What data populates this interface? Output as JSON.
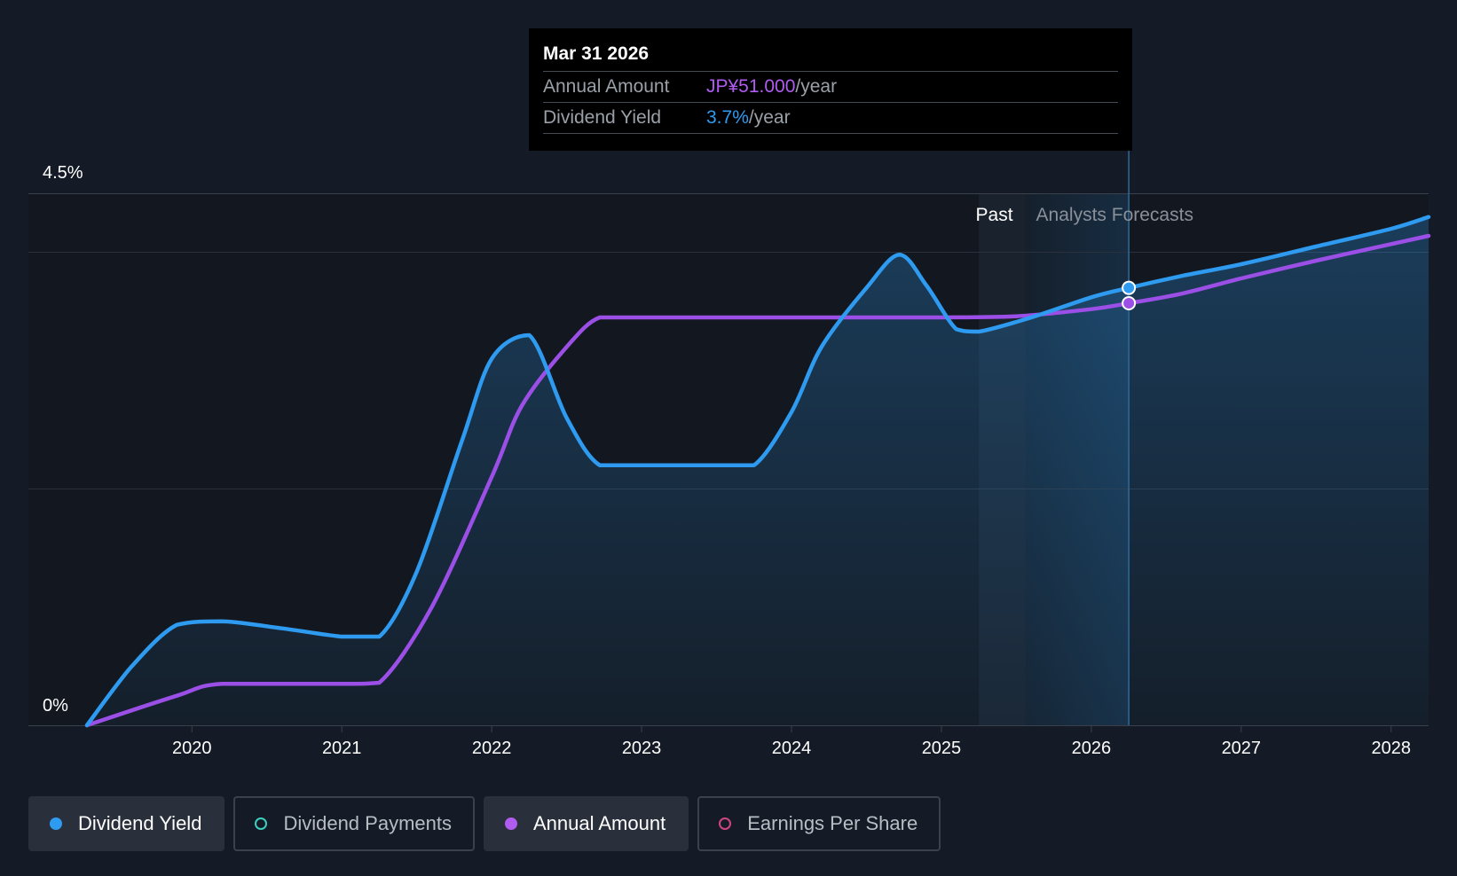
{
  "tooltip": {
    "date": "Mar 31 2026",
    "rows": [
      {
        "label": "Annual Amount",
        "value": "JP¥51.000",
        "unit": "/year"
      },
      {
        "label": "Dividend Yield",
        "value": "3.7%",
        "unit": "/year"
      }
    ]
  },
  "legend": [
    {
      "label": "Dividend Yield",
      "color": "#2e9bf0",
      "active": true,
      "filled": true
    },
    {
      "label": "Dividend Payments",
      "color": "#3ccfc0",
      "active": false,
      "filled": false
    },
    {
      "label": "Annual Amount",
      "color": "#b05cf0",
      "active": true,
      "filled": true
    },
    {
      "label": "Earnings Per Share",
      "color": "#d0457f",
      "active": false,
      "filled": false
    }
  ],
  "colors": {
    "yield": "#2e9bf0",
    "amount": "#9b4fe6",
    "background": "#151b26"
  },
  "chart_data": {
    "type": "line",
    "title": "",
    "xlabel": "",
    "ylabel": "",
    "ylim": [
      0,
      4.5
    ],
    "xlim": [
      2019.3,
      2028.25
    ],
    "y_tick_labels": [
      "0%",
      "4.5%"
    ],
    "x_ticks": [
      2020,
      2021,
      2022,
      2023,
      2024,
      2025,
      2026,
      2027,
      2028
    ],
    "regions": {
      "past_label": "Past",
      "forecast_label": "Analysts Forecasts",
      "past_end": 2025.25,
      "forecast_start": 2025.56,
      "cursor": 2026.25
    },
    "series": [
      {
        "name": "Dividend Yield",
        "unit": "%",
        "x": [
          2019.3,
          2019.6,
          2019.9,
          2020.2,
          2020.6,
          2021.0,
          2021.25,
          2021.5,
          2021.8,
          2022.0,
          2022.25,
          2022.5,
          2022.72,
          2023.0,
          2023.5,
          2023.75,
          2024.0,
          2024.2,
          2024.5,
          2024.72,
          2024.9,
          2025.1,
          2025.25,
          2025.6,
          2026.0,
          2026.25,
          2026.6,
          2027.0,
          2027.5,
          2028.0,
          2028.25
        ],
        "values": [
          0.0,
          0.5,
          0.85,
          0.88,
          0.82,
          0.75,
          0.75,
          1.3,
          2.4,
          3.1,
          3.3,
          2.6,
          2.2,
          2.2,
          2.2,
          2.2,
          2.65,
          3.2,
          3.7,
          3.98,
          3.72,
          3.35,
          3.33,
          3.45,
          3.62,
          3.7,
          3.8,
          3.9,
          4.05,
          4.2,
          4.3
        ]
      },
      {
        "name": "Annual Amount",
        "unit": "JP¥",
        "scale_note": "plotted on yield axis (JP¥51.000 ≈ 3.57%)",
        "x": [
          2019.3,
          2019.9,
          2020.2,
          2021.0,
          2021.25,
          2021.6,
          2022.0,
          2022.2,
          2022.5,
          2022.72,
          2023.0,
          2024.0,
          2025.0,
          2025.5,
          2026.0,
          2026.25,
          2026.6,
          2027.0,
          2027.5,
          2028.0,
          2028.25
        ],
        "values": [
          0.0,
          0.25,
          0.35,
          0.35,
          0.36,
          1.0,
          2.1,
          2.7,
          3.2,
          3.45,
          3.45,
          3.45,
          3.45,
          3.46,
          3.52,
          3.57,
          3.65,
          3.78,
          3.93,
          4.07,
          4.14
        ]
      }
    ]
  }
}
